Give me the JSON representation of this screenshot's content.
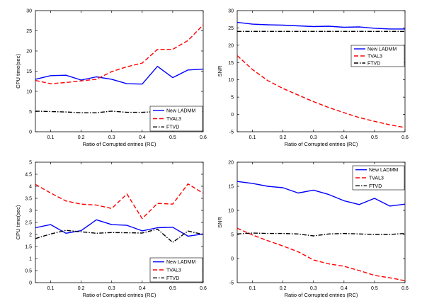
{
  "colors": {
    "new_ladmm": "#0000ff",
    "tval3": "#ff0000",
    "ftvd": "#000000",
    "axis": "#000000"
  },
  "chart_data": [
    {
      "type": "line",
      "xlabel": "Ratio of Corrupted entries (RC)",
      "ylabel": "CPU time(sec)",
      "xlim": [
        0.05,
        0.6
      ],
      "ylim": [
        0,
        30
      ],
      "xticks": [
        "0.1",
        "0.2",
        "0.3",
        "0.4",
        "0.5",
        "0.6"
      ],
      "xtick_values": [
        0.1,
        0.2,
        0.3,
        0.4,
        0.5,
        0.6
      ],
      "yticks": [
        "0",
        "5",
        "10",
        "15",
        "20",
        "25",
        "30"
      ],
      "ytick_values": [
        0,
        5,
        10,
        15,
        20,
        25,
        30
      ],
      "legend_position": "bottom-right",
      "grid": false,
      "x": [
        0.05,
        0.1,
        0.15,
        0.2,
        0.25,
        0.3,
        0.35,
        0.4,
        0.45,
        0.5,
        0.55,
        0.6
      ],
      "series": [
        {
          "name": "New LADMM",
          "style": "solid",
          "color": "#0000ff",
          "values": [
            13.0,
            13.9,
            14.0,
            12.8,
            13.6,
            13.0,
            11.9,
            11.8,
            16.2,
            13.4,
            15.3,
            15.5
          ]
        },
        {
          "name": "TVAL3",
          "style": "dashed",
          "color": "#ff0000",
          "values": [
            12.7,
            11.9,
            12.2,
            12.6,
            13.0,
            14.9,
            16.1,
            17.0,
            20.4,
            20.4,
            22.6,
            26.5
          ]
        },
        {
          "name": "FTVD",
          "style": "dashdot",
          "color": "#000000",
          "values": [
            5.1,
            5.0,
            4.9,
            4.7,
            4.7,
            5.1,
            4.8,
            4.8,
            5.0,
            4.9,
            4.8,
            4.9
          ]
        }
      ]
    },
    {
      "type": "line",
      "xlabel": "Ratio of Corrupted entries (RC)",
      "ylabel": "SNR",
      "xlim": [
        0.05,
        0.6
      ],
      "ylim": [
        -5,
        30
      ],
      "xticks": [
        "0.1",
        "0.2",
        "0.3",
        "0.4",
        "0.5",
        "0.6"
      ],
      "xtick_values": [
        0.1,
        0.2,
        0.3,
        0.4,
        0.5,
        0.6
      ],
      "yticks": [
        "-5",
        "0",
        "5",
        "10",
        "15",
        "20",
        "25",
        "30"
      ],
      "ytick_values": [
        -5,
        0,
        5,
        10,
        15,
        20,
        25,
        30
      ],
      "legend_position": "upper-right",
      "grid": false,
      "x": [
        0.05,
        0.1,
        0.15,
        0.2,
        0.25,
        0.3,
        0.35,
        0.4,
        0.45,
        0.5,
        0.55,
        0.6
      ],
      "series": [
        {
          "name": "New LADMM",
          "style": "solid",
          "color": "#0000ff",
          "values": [
            26.6,
            26.1,
            25.9,
            25.8,
            25.6,
            25.4,
            25.5,
            25.2,
            25.3,
            24.9,
            24.7,
            24.7
          ]
        },
        {
          "name": "TVAL3",
          "style": "dashed",
          "color": "#ff0000",
          "values": [
            17.0,
            13.0,
            9.8,
            7.5,
            5.6,
            3.7,
            2.0,
            0.5,
            -0.9,
            -2.0,
            -3.0,
            -3.8
          ]
        },
        {
          "name": "FTVD",
          "style": "dashdot",
          "color": "#000000",
          "values": [
            24.0,
            24.0,
            24.0,
            24.0,
            24.0,
            24.0,
            24.0,
            24.0,
            24.0,
            24.0,
            24.0,
            24.0
          ]
        }
      ]
    },
    {
      "type": "line",
      "xlabel": "Ratio of Corrupted entries (RC)",
      "ylabel": "CPU time(sec)",
      "xlim": [
        0.05,
        0.6
      ],
      "ylim": [
        0,
        5
      ],
      "xticks": [
        "0.1",
        "0.2",
        "0.3",
        "0.4",
        "0.5",
        "0.6"
      ],
      "xtick_values": [
        0.1,
        0.2,
        0.3,
        0.4,
        0.5,
        0.6
      ],
      "yticks": [
        "0",
        "0.5",
        "1",
        "1.5",
        "2",
        "2.5",
        "3",
        "3.5",
        "4",
        "4.5",
        "5"
      ],
      "ytick_values": [
        0,
        0.5,
        1,
        1.5,
        2,
        2.5,
        3,
        3.5,
        4,
        4.5,
        5
      ],
      "legend_position": "bottom-right",
      "grid": false,
      "x": [
        0.05,
        0.1,
        0.15,
        0.2,
        0.25,
        0.3,
        0.35,
        0.4,
        0.45,
        0.5,
        0.55,
        0.6
      ],
      "series": [
        {
          "name": "New LADMM",
          "style": "solid",
          "color": "#0000ff",
          "values": [
            2.28,
            2.41,
            2.05,
            2.16,
            2.61,
            2.41,
            2.38,
            2.15,
            2.28,
            2.3,
            1.93,
            2.02
          ]
        },
        {
          "name": "TVAL3",
          "style": "dashed",
          "color": "#ff0000",
          "values": [
            4.08,
            3.72,
            3.39,
            3.26,
            3.22,
            3.08,
            3.68,
            2.66,
            3.29,
            3.26,
            4.1,
            3.71
          ]
        },
        {
          "name": "FTVD",
          "style": "dashdot",
          "color": "#000000",
          "values": [
            1.83,
            2.02,
            2.17,
            2.11,
            2.05,
            2.08,
            2.07,
            2.06,
            2.22,
            1.67,
            2.14,
            2.0
          ]
        }
      ]
    },
    {
      "type": "line",
      "xlabel": "Ratio of Corrupted entries (RC)",
      "ylabel": "SNR",
      "xlim": [
        0.05,
        0.6
      ],
      "ylim": [
        -5,
        20
      ],
      "xticks": [
        "0.1",
        "0.2",
        "0.3",
        "0.4",
        "0.5",
        "0.6"
      ],
      "xtick_values": [
        0.1,
        0.2,
        0.3,
        0.4,
        0.5,
        0.6
      ],
      "yticks": [
        "-5",
        "0",
        "5",
        "10",
        "15",
        "20"
      ],
      "ytick_values": [
        -5,
        0,
        5,
        10,
        15,
        20
      ],
      "legend_position": "upper-right",
      "grid": false,
      "x": [
        0.05,
        0.1,
        0.15,
        0.2,
        0.25,
        0.3,
        0.35,
        0.4,
        0.45,
        0.5,
        0.55,
        0.6
      ],
      "series": [
        {
          "name": "New LADMM",
          "style": "solid",
          "color": "#0000ff",
          "values": [
            16.0,
            15.6,
            15.0,
            14.7,
            13.6,
            14.2,
            13.3,
            12.0,
            11.2,
            12.5,
            10.9,
            11.3
          ]
        },
        {
          "name": "TVAL3",
          "style": "dashed",
          "color": "#ff0000",
          "values": [
            6.3,
            4.9,
            3.7,
            2.6,
            1.4,
            -0.3,
            -1.1,
            -1.6,
            -2.5,
            -3.5,
            -4.0,
            -4.6
          ]
        },
        {
          "name": "FTVD",
          "style": "dashdot",
          "color": "#000000",
          "values": [
            5.1,
            5.3,
            5.2,
            5.2,
            5.1,
            4.7,
            5.1,
            5.2,
            5.1,
            5.0,
            5.0,
            5.2
          ]
        }
      ]
    }
  ]
}
